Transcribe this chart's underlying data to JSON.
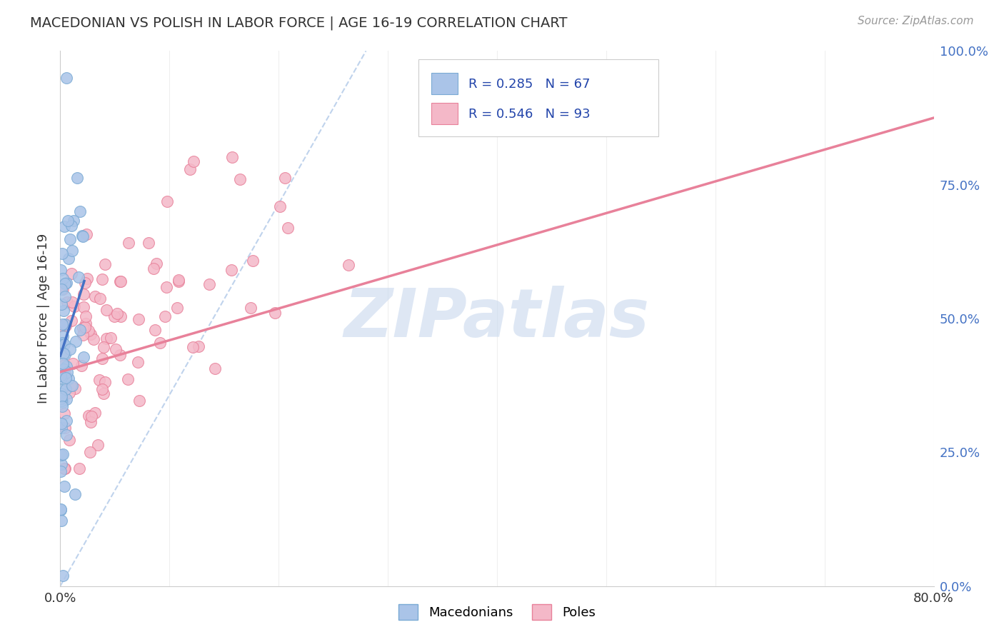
{
  "title": "MACEDONIAN VS POLISH IN LABOR FORCE | AGE 16-19 CORRELATION CHART",
  "source": "Source: ZipAtlas.com",
  "ylabel_label": "In Labor Force | Age 16-19",
  "x_min": 0.0,
  "x_max": 0.8,
  "y_min": 0.0,
  "y_max": 1.0,
  "x_ticks": [
    0.0,
    0.1,
    0.2,
    0.3,
    0.4,
    0.5,
    0.6,
    0.7,
    0.8
  ],
  "y_ticks_right": [
    0.0,
    0.25,
    0.5,
    0.75,
    1.0
  ],
  "macedonian_color": "#aac4e8",
  "macedonian_edge_color": "#7aaad4",
  "polish_color": "#f4b8c8",
  "polish_edge_color": "#e8819a",
  "blue_line_color": "#4472c4",
  "pink_line_color": "#e8819a",
  "diagonal_color": "#b0c8e8",
  "watermark": "ZIPatlas",
  "watermark_color": "#c8d8ee",
  "title_color": "#333333",
  "axis_label_color": "#333333",
  "tick_color_right": "#4472c4",
  "grid_color": "#e0e0e0",
  "mac_R": 0.285,
  "mac_N": 67,
  "pol_R": 0.546,
  "pol_N": 93,
  "mac_seed": 42,
  "pol_seed": 77
}
